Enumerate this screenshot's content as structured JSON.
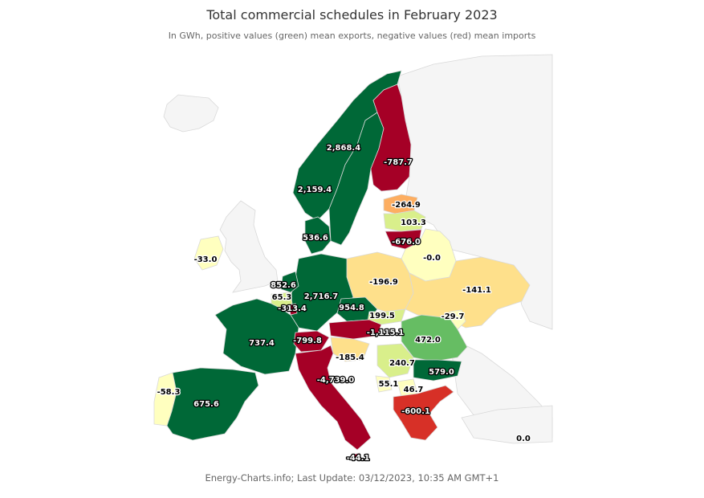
{
  "title": "Total commercial schedules in February 2023",
  "subtitle": "In GWh, positive values (green) mean exports, negative values (red) mean imports",
  "credits": "Energy-Charts.info; Last Update: 03/12/2023, 10:35 AM GMT+1",
  "colors": {
    "strong_export": "#006837",
    "export": "#66bd63",
    "light_export": "#d9ef8b",
    "neutral": "#ffffbf",
    "light_import": "#fee08b",
    "import": "#fdae61",
    "strong_import_red": "#d73027",
    "strong_import": "#a50026",
    "no_data": "#f5f5f5",
    "border": "#d9d9d9"
  },
  "regions": [
    {
      "id": "norway",
      "label": "2,868.4",
      "color": "strong_export"
    },
    {
      "id": "finland",
      "label": "-787.7",
      "color": "strong_import"
    },
    {
      "id": "sweden",
      "label": "2,159.4",
      "color": "strong_export"
    },
    {
      "id": "estonia",
      "label": "-264.9",
      "color": "import"
    },
    {
      "id": "latvia",
      "label": "103.3",
      "color": "light_export"
    },
    {
      "id": "lithuania",
      "label": "-676.0",
      "color": "strong_import"
    },
    {
      "id": "denmark",
      "label": "536.6",
      "color": "strong_export"
    },
    {
      "id": "belarus",
      "label": "-0.0",
      "color": "neutral"
    },
    {
      "id": "ireland",
      "label": "-33.0",
      "color": "neutral"
    },
    {
      "id": "poland",
      "label": "-196.9",
      "color": "light_import"
    },
    {
      "id": "ukraine",
      "label": "-141.1",
      "color": "light_import"
    },
    {
      "id": "netherlands",
      "label": "852.6",
      "color": "strong_export"
    },
    {
      "id": "belgium",
      "label": "65.3",
      "color": "light_export"
    },
    {
      "id": "luxembourg",
      "label": "-313.4",
      "color": "strong_import"
    },
    {
      "id": "germany",
      "label": "2,716.7",
      "color": "strong_export"
    },
    {
      "id": "czechia",
      "label": "954.8",
      "color": "strong_export"
    },
    {
      "id": "slovakia",
      "label": "199.5",
      "color": "light_export"
    },
    {
      "id": "moldova",
      "label": "-29.7",
      "color": "neutral"
    },
    {
      "id": "austria",
      "label": "-1,115.1",
      "color": "strong_import"
    },
    {
      "id": "romania",
      "label": "472.0",
      "color": "export"
    },
    {
      "id": "france",
      "label": "737.4",
      "color": "strong_export"
    },
    {
      "id": "switzerland",
      "label": "-799.8",
      "color": "strong_import"
    },
    {
      "id": "slovenia",
      "label": "-185.4",
      "color": "light_import"
    },
    {
      "id": "serbia",
      "label": "240.7",
      "color": "light_export"
    },
    {
      "id": "bulgaria",
      "label": "579.0",
      "color": "strong_export"
    },
    {
      "id": "italy",
      "label": "-4,739.0",
      "color": "strong_import"
    },
    {
      "id": "montenegro",
      "label": "55.1",
      "color": "neutral"
    },
    {
      "id": "north_macedonia",
      "label": "46.7",
      "color": "neutral"
    },
    {
      "id": "portugal",
      "label": "-58.3",
      "color": "neutral"
    },
    {
      "id": "spain",
      "label": "675.6",
      "color": "strong_export"
    },
    {
      "id": "greece",
      "label": "-600.1",
      "color": "strong_import_red"
    },
    {
      "id": "turkey",
      "label": "0.0",
      "color": "no_data"
    },
    {
      "id": "malta",
      "label": "-44.1",
      "color": "strong_import"
    }
  ]
}
